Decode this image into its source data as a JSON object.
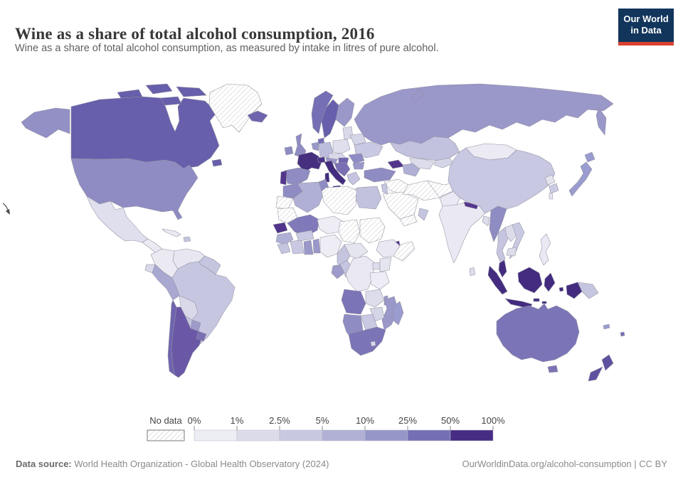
{
  "header": {
    "logo_line1": "Our World",
    "logo_line2": "in Data",
    "logo_bg": "#12355c",
    "logo_accent": "#d9412f"
  },
  "footer": {
    "source_label": "Data source:",
    "source_text": " World Health Organization - Global Health Observatory (2024)",
    "right_text": "OurWorldinData.org/alcohol-consumption | CC BY"
  },
  "chart_data": {
    "type": "choropleth_map",
    "title": "Wine as a share of total alcohol consumption, 2016",
    "subtitle": "Wine as a share of total alcohol consumption, as measured by intake in litres of pure alcohol.",
    "year": 2016,
    "unit": "% of total alcohol consumption, litres of pure alcohol",
    "legend": {
      "no_data_label": "No data",
      "no_data_pattern": "diagonal-hatch",
      "labels": [
        "0%",
        "1%",
        "2.5%",
        "5%",
        "10%",
        "25%",
        "50%",
        "100%"
      ],
      "bins": [
        "0-1%",
        "1-2.5%",
        "2.5-5%",
        "5-10%",
        "10-25%",
        "25-50%",
        "50-100%"
      ],
      "bin_colors": [
        "#ededf4",
        "#dcdcea",
        "#c9c9e2",
        "#b1b1d6",
        "#9697c9",
        "#7570b5",
        "#472c84"
      ]
    },
    "regions": {
      "alaska": {
        "name": "United States (Alaska)",
        "bin": "10-25%",
        "color": "#9390c6"
      },
      "canada": {
        "name": "Canada",
        "bin": "25-50%",
        "color": "#675fab"
      },
      "greenland": {
        "name": "Greenland",
        "bin": "No data",
        "color": "hatch"
      },
      "usa": {
        "name": "United States",
        "bin": "10-25%",
        "color": "#8f8cc3"
      },
      "mexico": {
        "name": "Mexico",
        "bin": "1-2.5%",
        "color": "#e0dfee"
      },
      "central_america": {
        "name": "Central America",
        "bin": "0-1%",
        "color": "#ebeaf3"
      },
      "cuba": {
        "name": "Cuba",
        "bin": "0-1%",
        "color": "#ebeaf3"
      },
      "hispaniola": {
        "name": "Dominican Republic / Haiti",
        "bin": "2.5-5%",
        "color": "#c5c5e0"
      },
      "colombia": {
        "name": "Colombia",
        "bin": "0-1%",
        "color": "#ebeaf3"
      },
      "venezuela": {
        "name": "Venezuela",
        "bin": "0-1%",
        "color": "#e8e7f1"
      },
      "guyanas": {
        "name": "Guyana / Suriname",
        "bin": "2.5-5%",
        "color": "#c5c5e0"
      },
      "ecuador": {
        "name": "Ecuador",
        "bin": "1-2.5%",
        "color": "#d9d9ea"
      },
      "peru": {
        "name": "Peru",
        "bin": "5-10%",
        "color": "#a9a8d1"
      },
      "brazil": {
        "name": "Brazil",
        "bin": "2.5-5%",
        "color": "#c6c6e1"
      },
      "bolivia": {
        "name": "Bolivia",
        "bin": "1-2.5%",
        "color": "#d9d9ea"
      },
      "paraguay": {
        "name": "Paraguay",
        "bin": "10-25%",
        "color": "#9e9bcb"
      },
      "chile": {
        "name": "Chile",
        "bin": "25-50%",
        "color": "#6f64ae"
      },
      "argentina": {
        "name": "Argentina",
        "bin": "25-50%",
        "color": "#6a58a6"
      },
      "uruguay": {
        "name": "Uruguay",
        "bin": "25-50%",
        "color": "#7b6fb4"
      },
      "iceland": {
        "name": "Iceland",
        "bin": "25-50%",
        "color": "#6f64ae"
      },
      "ireland": {
        "name": "Ireland",
        "bin": "10-25%",
        "color": "#8f8cc3"
      },
      "uk": {
        "name": "United Kingdom",
        "bin": "10-25%",
        "color": "#8f8cc3"
      },
      "norway": {
        "name": "Norway",
        "bin": "25-50%",
        "color": "#7570b5"
      },
      "sweden": {
        "name": "Sweden",
        "bin": "25-50%",
        "color": "#675fab"
      },
      "finland": {
        "name": "Finland",
        "bin": "10-25%",
        "color": "#9a97c9"
      },
      "denmark": {
        "name": "Denmark",
        "bin": "25-50%",
        "color": "#7570b5"
      },
      "baltics": {
        "name": "Baltic states",
        "bin": "1-2.5%",
        "color": "#d9d9ea"
      },
      "germany": {
        "name": "Germany",
        "bin": "2.5-5%",
        "color": "#bcbcdc"
      },
      "benelux": {
        "name": "Belgium / Netherlands",
        "bin": "10-25%",
        "color": "#9a97c9"
      },
      "poland": {
        "name": "Poland",
        "bin": "1-2.5%",
        "color": "#e0dfee"
      },
      "czech_slovakia": {
        "name": "Czechia / Slovakia",
        "bin": "1-2.5%",
        "color": "#d9d9ea"
      },
      "belarus": {
        "name": "Belarus",
        "bin": "1-2.5%",
        "color": "#d5d5e8"
      },
      "ukraine": {
        "name": "Ukraine",
        "bin": "2.5-5%",
        "color": "#c9c9e3"
      },
      "france": {
        "name": "France",
        "bin": "50-100%",
        "color": "#46307f"
      },
      "switzerland": {
        "name": "Switzerland",
        "bin": "50-100%",
        "color": "#4a3488"
      },
      "austria": {
        "name": "Austria",
        "bin": "10-25%",
        "color": "#9a97c9"
      },
      "hungary": {
        "name": "Hungary",
        "bin": "25-50%",
        "color": "#6f64ae"
      },
      "spain": {
        "name": "Spain",
        "bin": "10-25%",
        "color": "#8f8cc3"
      },
      "portugal": {
        "name": "Portugal",
        "bin": "50-100%",
        "color": "#54358c"
      },
      "italy": {
        "name": "Italy",
        "bin": "50-100%",
        "color": "#432c7f"
      },
      "balkans": {
        "name": "Balkans",
        "bin": "25-50%",
        "color": "#7b6fb4"
      },
      "romania": {
        "name": "Romania",
        "bin": "10-25%",
        "color": "#8f8cc3"
      },
      "bulgaria": {
        "name": "Bulgaria",
        "bin": "10-25%",
        "color": "#9a97c9"
      },
      "greece": {
        "name": "Greece",
        "bin": "2.5-5%",
        "color": "#c5c5e0"
      },
      "turkey": {
        "name": "Turkey",
        "bin": "10-25%",
        "color": "#8f8cc3"
      },
      "caucasus": {
        "name": "Georgia / Caucasus",
        "bin": "50-100%",
        "color": "#54358c"
      },
      "russia": {
        "name": "Russia",
        "bin": "10-25%",
        "color": "#9a97c9"
      },
      "kazakhstan": {
        "name": "Kazakhstan",
        "bin": "2.5-5%",
        "color": "#c2c2de"
      },
      "uzbekistan": {
        "name": "Uzbekistan",
        "bin": "1-2.5%",
        "color": "#dcdceb"
      },
      "turkmenistan": {
        "name": "Turkmenistan",
        "bin": "5-10%",
        "color": "#b0afd5"
      },
      "kyrgyz_tajik": {
        "name": "Kyrgyzstan / Tajikistan",
        "bin": "1-2.5%",
        "color": "#d5d5e8"
      },
      "syria_iraq": {
        "name": "Syria / Iraq",
        "bin": "No data",
        "color": "hatch"
      },
      "israel_jordan": {
        "name": "Israel / Jordan",
        "bin": "2.5-5%",
        "color": "#c5c5e0"
      },
      "saudi_arabia": {
        "name": "Saudi Arabia",
        "bin": "No data",
        "color": "hatch"
      },
      "yemen": {
        "name": "Yemen",
        "bin": "No data",
        "color": "hatch"
      },
      "oman": {
        "name": "Oman",
        "bin": "2.5-5%",
        "color": "#c5c5e0"
      },
      "iran": {
        "name": "Iran",
        "bin": "No data",
        "color": "hatch"
      },
      "afghanistan": {
        "name": "Afghanistan",
        "bin": "No data",
        "color": "hatch"
      },
      "pakistan": {
        "name": "Pakistan",
        "bin": "0-1%",
        "color": "#e9e8f3"
      },
      "india": {
        "name": "India",
        "bin": "0-1%",
        "color": "#eae9f3"
      },
      "nepal": {
        "name": "Nepal",
        "bin": "50-100%",
        "color": "#54358c"
      },
      "bangladesh": {
        "name": "Bangladesh",
        "bin": "1-2.5%",
        "color": "#dcdceb"
      },
      "sri_lanka": {
        "name": "Sri Lanka",
        "bin": "1-2.5%",
        "color": "#dcdceb"
      },
      "mongolia": {
        "name": "Mongolia",
        "bin": "0-1%",
        "color": "#ecebf4"
      },
      "china": {
        "name": "China",
        "bin": "2.5-5%",
        "color": "#c8c8e2"
      },
      "taiwan": {
        "name": "Taiwan",
        "bin": "0-1%",
        "color": "#e5e5ef"
      },
      "north_korea": {
        "name": "North Korea",
        "bin": "0-1%",
        "color": "#e5e5ef"
      },
      "south_korea": {
        "name": "South Korea",
        "bin": "2.5-5%",
        "color": "#cacae3"
      },
      "japan": {
        "name": "Japan",
        "bin": "10-25%",
        "color": "#9a9bce"
      },
      "myanmar": {
        "name": "Myanmar",
        "bin": "10-25%",
        "color": "#8f8cc3"
      },
      "thailand": {
        "name": "Thailand",
        "bin": "2.5-5%",
        "color": "#c5c5e0"
      },
      "laos": {
        "name": "Laos",
        "bin": "1-2.5%",
        "color": "#dcdceb"
      },
      "vietnam": {
        "name": "Vietnam",
        "bin": "2.5-5%",
        "color": "#c9c9e3"
      },
      "cambodia": {
        "name": "Cambodia",
        "bin": "1-2.5%",
        "color": "#dcdceb"
      },
      "malaysia": {
        "name": "Malaysia",
        "bin": "50-100%",
        "color": "#432c7f"
      },
      "indonesia": {
        "name": "Indonesia",
        "bin": "50-100%",
        "color": "#432c7f"
      },
      "png": {
        "name": "Papua New Guinea",
        "bin": "2.5-5%",
        "color": "#c5c5e0"
      },
      "philippines": {
        "name": "Philippines",
        "bin": "0-1%",
        "color": "#eae9f3"
      },
      "australia": {
        "name": "Australia",
        "bin": "25-50%",
        "color": "#7b74b7"
      },
      "new_zealand": {
        "name": "New Zealand",
        "bin": "25-50%",
        "color": "#5f51a0"
      },
      "new_caledonia": {
        "name": "New Caledonia",
        "bin": "10-25%",
        "color": "#9a9bce"
      },
      "fiji": {
        "name": "Fiji",
        "bin": "25-50%",
        "color": "#7570b5"
      },
      "morocco": {
        "name": "Morocco",
        "bin": "10-25%",
        "color": "#8f8cc3"
      },
      "western_sahara": {
        "name": "Western Sahara",
        "bin": "No data",
        "color": "hatch"
      },
      "algeria": {
        "name": "Algeria",
        "bin": "5-10%",
        "color": "#b0afd5"
      },
      "tunisia": {
        "name": "Tunisia",
        "bin": "10-25%",
        "color": "#8f8cc3"
      },
      "libya": {
        "name": "Libya",
        "bin": "No data",
        "color": "hatch"
      },
      "egypt": {
        "name": "Egypt",
        "bin": "2.5-5%",
        "color": "#c2c2de"
      },
      "mauritania": {
        "name": "Mauritania",
        "bin": "No data",
        "color": "hatch"
      },
      "senegal": {
        "name": "Senegal",
        "bin": "50-100%",
        "color": "#50348b"
      },
      "mali": {
        "name": "Mali",
        "bin": "25-50%",
        "color": "#8079ba"
      },
      "niger": {
        "name": "Niger",
        "bin": "0-1%",
        "color": "#eeedf5"
      },
      "chad": {
        "name": "Chad",
        "bin": "No data",
        "color": "hatch"
      },
      "sudan": {
        "name": "Sudan",
        "bin": "No data",
        "color": "hatch"
      },
      "djibouti": {
        "name": "Djibouti",
        "bin": "50-100%",
        "color": "#54358c"
      },
      "ethiopia": {
        "name": "Ethiopia",
        "bin": "0-1%",
        "color": "#eae9f3"
      },
      "somalia": {
        "name": "Somalia",
        "bin": "No data",
        "color": "hatch"
      },
      "guinea": {
        "name": "Guinea",
        "bin": "5-10%",
        "color": "#b0afd5"
      },
      "sierra_liberia": {
        "name": "Sierra Leone / Liberia",
        "bin": "2.5-5%",
        "color": "#c5c5e0"
      },
      "cote_divoire": {
        "name": "Cote d'Ivoire",
        "bin": "2.5-5%",
        "color": "#c9c9e3"
      },
      "burkina": {
        "name": "Burkina Faso",
        "bin": "2.5-5%",
        "color": "#c9c9e3"
      },
      "ghana": {
        "name": "Ghana",
        "bin": "10-25%",
        "color": "#9a97c9"
      },
      "togo_benin": {
        "name": "Togo / Benin",
        "bin": "10-25%",
        "color": "#9a97c9"
      },
      "nigeria": {
        "name": "Nigeria",
        "bin": "0-1%",
        "color": "#eeedf5"
      },
      "cameroon": {
        "name": "Cameroon",
        "bin": "2.5-5%",
        "color": "#c5c5e0"
      },
      "car": {
        "name": "Central African Republic",
        "bin": "0-1%",
        "color": "#e5e5ef"
      },
      "gabon": {
        "name": "Gabon",
        "bin": "10-25%",
        "color": "#9e9bcb"
      },
      "congo": {
        "name": "Congo",
        "bin": "2.5-5%",
        "color": "#c5c5e0"
      },
      "drc": {
        "name": "Democratic Republic of Congo",
        "bin": "0-1%",
        "color": "#eae9f3"
      },
      "uganda": {
        "name": "Uganda",
        "bin": "1-2.5%",
        "color": "#dcdceb"
      },
      "kenya": {
        "name": "Kenya",
        "bin": "0-1%",
        "color": "#e5e5ef"
      },
      "tanzania": {
        "name": "Tanzania",
        "bin": "0-1%",
        "color": "#eeedf5"
      },
      "angola": {
        "name": "Angola",
        "bin": "25-50%",
        "color": "#7b74b7"
      },
      "zambia": {
        "name": "Zambia",
        "bin": "1-2.5%",
        "color": "#dcdceb"
      },
      "malawi": {
        "name": "Malawi",
        "bin": "10-25%",
        "color": "#9a97c9"
      },
      "mozambique": {
        "name": "Mozambique",
        "bin": "10-25%",
        "color": "#9a97c9"
      },
      "zimbabwe": {
        "name": "Zimbabwe",
        "bin": "1-2.5%",
        "color": "#d5d5e8"
      },
      "botswana": {
        "name": "Botswana",
        "bin": "2.5-5%",
        "color": "#c9c9e3"
      },
      "namibia": {
        "name": "Namibia",
        "bin": "10-25%",
        "color": "#8f8cc3"
      },
      "south_africa": {
        "name": "South Africa",
        "bin": "25-50%",
        "color": "#7b74b7"
      },
      "lesotho": {
        "name": "Lesotho",
        "bin": "1-2.5%",
        "color": "#d9d9ea"
      },
      "madagascar": {
        "name": "Madagascar",
        "bin": "10-25%",
        "color": "#9a9bce"
      }
    }
  }
}
